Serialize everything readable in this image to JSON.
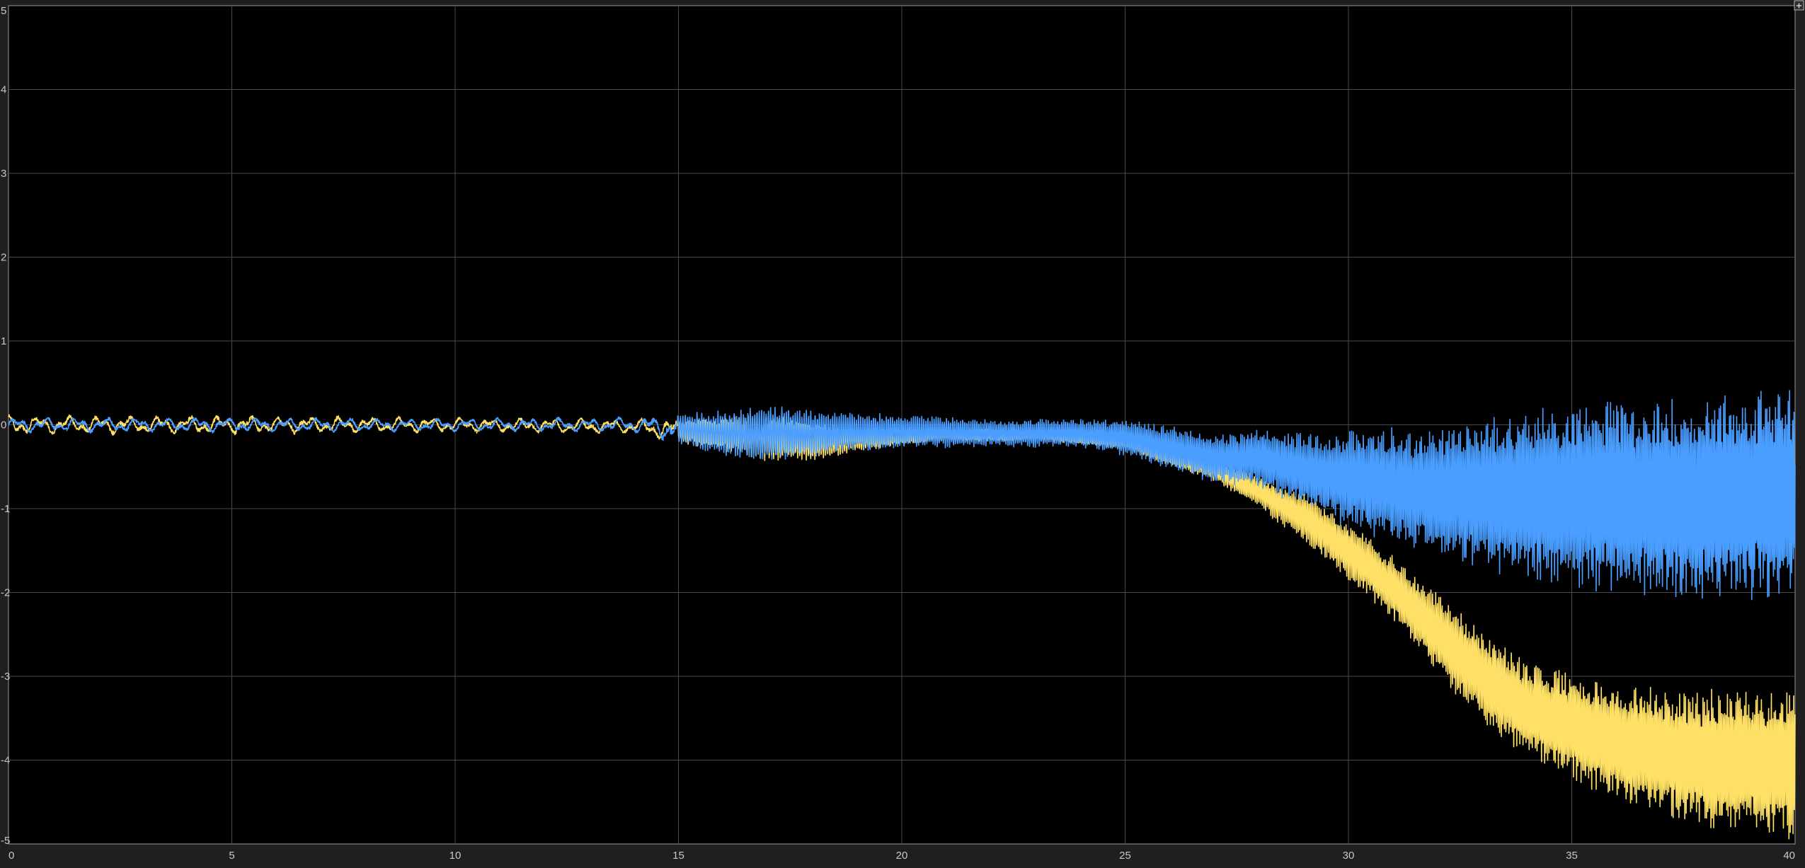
{
  "chart_data": {
    "type": "line",
    "title": "",
    "xlabel": "",
    "ylabel": "",
    "xlim": [
      0,
      40
    ],
    "ylim": [
      -5,
      5
    ],
    "x_ticks": [
      0,
      5,
      10,
      15,
      20,
      25,
      30,
      35,
      40
    ],
    "x_tick_labels": [
      "0",
      "5",
      "10",
      "15",
      "20",
      "25",
      "30",
      "35",
      "40"
    ],
    "y_ticks": [
      -5,
      -4,
      -3,
      -2,
      -1,
      0,
      1,
      2,
      3,
      4,
      5
    ],
    "y_tick_labels": [
      "-5",
      "-4",
      "-3",
      "-2",
      "-1",
      "0",
      "1",
      "2",
      "3",
      "4",
      "5"
    ],
    "grid": true,
    "legend": "none",
    "background_color": "#000000",
    "series": [
      {
        "color": "#4a9eff",
        "envelope": {
          "x": [
            0,
            5,
            10,
            14,
            16,
            17,
            18,
            20,
            22,
            24,
            25,
            27,
            28,
            29,
            30,
            32,
            34,
            36,
            38,
            40
          ],
          "center": [
            0,
            0,
            0,
            0,
            -0.1,
            -0.1,
            -0.1,
            -0.08,
            -0.1,
            -0.1,
            -0.15,
            -0.4,
            -0.4,
            -0.55,
            -0.65,
            -0.8,
            -0.85,
            -0.85,
            -0.9,
            -0.8
          ],
          "amplitude": [
            0.08,
            0.08,
            0.07,
            0.08,
            0.28,
            0.35,
            0.28,
            0.2,
            0.17,
            0.17,
            0.22,
            0.3,
            0.35,
            0.45,
            0.6,
            0.8,
            1.05,
            1.2,
            1.25,
            1.3
          ]
        }
      },
      {
        "color": "#ffe066",
        "envelope": {
          "x": [
            0,
            5,
            10,
            14,
            16,
            17,
            18,
            20,
            22,
            24,
            25,
            27,
            28,
            29,
            30,
            31,
            32,
            33,
            34,
            36,
            38,
            40
          ],
          "center": [
            0,
            0,
            0,
            -0.02,
            -0.12,
            -0.15,
            -0.2,
            -0.15,
            -0.12,
            -0.15,
            -0.22,
            -0.55,
            -0.8,
            -1.1,
            -1.5,
            -1.95,
            -2.5,
            -3.0,
            -3.4,
            -3.8,
            -4.0,
            -4.05
          ],
          "amplitude": [
            0.1,
            0.1,
            0.08,
            0.08,
            0.2,
            0.3,
            0.25,
            0.08,
            0.07,
            0.07,
            0.08,
            0.12,
            0.2,
            0.3,
            0.35,
            0.4,
            0.5,
            0.55,
            0.6,
            0.7,
            0.85,
            0.9
          ]
        }
      }
    ]
  }
}
